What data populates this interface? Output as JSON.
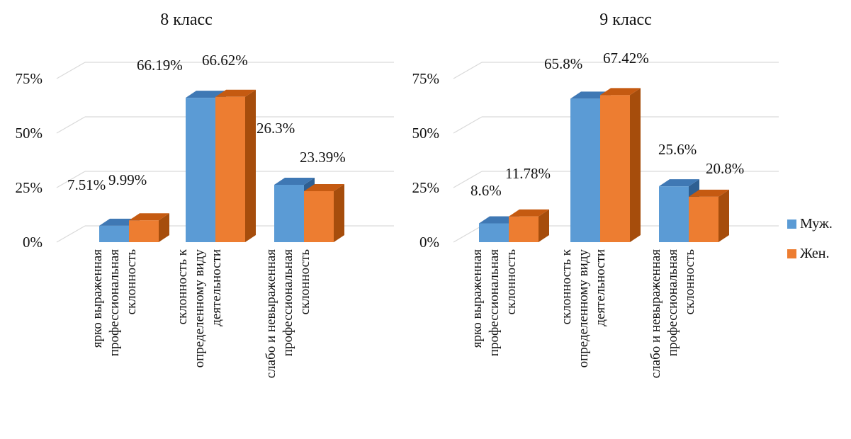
{
  "colors": {
    "muzh": "#5b9bd5",
    "muzh_top": "#3f78b4",
    "muzh_side": "#2e5f92",
    "zhen": "#ed7d31",
    "zhen_top": "#c55a11",
    "zhen_side": "#a64d0c",
    "grid": "#d9d9d9"
  },
  "legend": [
    {
      "name": "Муж.",
      "color": "#5b9bd5"
    },
    {
      "name": "Жен.",
      "color": "#ed7d31"
    }
  ],
  "chart_data": [
    {
      "type": "bar",
      "title": "8 класс",
      "categories": [
        [
          "ярко выраженная",
          "профессиональная",
          "склонность"
        ],
        [
          "склонность к",
          "определенному виду",
          "деятельности"
        ],
        [
          "слабо и невыраженная",
          "профессиональная",
          "склонность"
        ]
      ],
      "yticks": [
        "0%",
        "25%",
        "50%",
        "75%"
      ],
      "ylim": [
        0,
        75
      ],
      "grid": true,
      "series": [
        {
          "name": "Муж.",
          "values": [
            7.51,
            66.19,
            26.3
          ],
          "labels": [
            "7.51%",
            "66.19%",
            "26.3%"
          ]
        },
        {
          "name": "Жен.",
          "values": [
            9.99,
            66.62,
            23.39
          ],
          "labels": [
            "9.99%",
            "66.62%",
            "23.39%"
          ]
        }
      ]
    },
    {
      "type": "bar",
      "title": "9 класс",
      "categories": [
        [
          "ярко выраженная",
          "профессиональная",
          "склонность"
        ],
        [
          "склонность к",
          "определенному виду",
          "деятельности"
        ],
        [
          "слабо и невыраженная",
          "профессиональная",
          "склонность"
        ]
      ],
      "yticks": [
        "0%",
        "25%",
        "50%",
        "75%"
      ],
      "ylim": [
        0,
        75
      ],
      "grid": true,
      "series": [
        {
          "name": "Муж.",
          "values": [
            8.6,
            65.8,
            25.6
          ],
          "labels": [
            "8.6%",
            "65.8%",
            "25.6%"
          ]
        },
        {
          "name": "Жен.",
          "values": [
            11.78,
            67.42,
            20.8
          ],
          "labels": [
            "11.78%",
            "67.42%",
            "20.8%"
          ]
        }
      ]
    }
  ],
  "legend_position": "right"
}
